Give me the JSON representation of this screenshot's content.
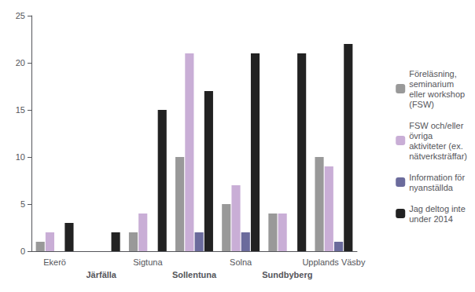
{
  "chart_data": {
    "type": "bar",
    "categories": [
      "Ekerö",
      "Järfälla",
      "Sigtuna",
      "Sollentuna",
      "Solna",
      "Sundbyberg",
      "Upplands Väsby"
    ],
    "series": [
      {
        "name": "Föreläsning,\nseminarium\neller workshop\n(FSW)",
        "color": "#999999",
        "values": [
          1,
          0,
          2,
          10,
          5,
          4,
          10
        ]
      },
      {
        "name": "FSW och/eller\növriga\naktiviteter (ex.\nnätverksträffar)",
        "color": "#c9aed6",
        "values": [
          2,
          0,
          4,
          21,
          7,
          4,
          9
        ]
      },
      {
        "name": "Information för\nnyanställda",
        "color": "#6b6b9c",
        "values": [
          0,
          0,
          0,
          2,
          2,
          0,
          1
        ]
      },
      {
        "name": "Jag deltog inte\nunder 2014",
        "color": "#222222",
        "values": [
          3,
          2,
          15,
          17,
          21,
          21,
          22
        ]
      }
    ],
    "ylim": [
      0,
      25
    ],
    "yticks": [
      0,
      5,
      10,
      15,
      20,
      25
    ],
    "grid": false,
    "legend": "right"
  }
}
